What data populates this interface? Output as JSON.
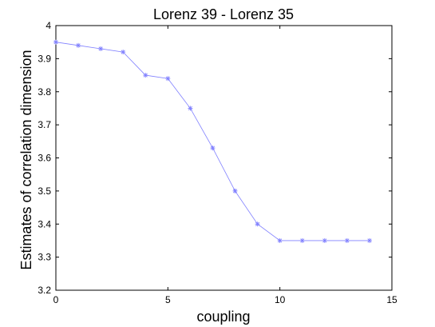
{
  "chart_data": {
    "type": "line",
    "title": "Lorenz 39 - Lorenz 35",
    "xlabel": "coupling",
    "ylabel": "Estimates of correlation dimension",
    "xlim": [
      0,
      15
    ],
    "ylim": [
      3.2,
      4
    ],
    "xticks": [
      "0",
      "5",
      "10",
      "15"
    ],
    "yticks": [
      "3.2",
      "3.3",
      "3.4",
      "3.5",
      "3.6",
      "3.7",
      "3.8",
      "3.9",
      "4"
    ],
    "grid": false,
    "marker": "asterisk",
    "series": [
      {
        "color": "#8080ff",
        "x": [
          0,
          1,
          2,
          3,
          4,
          5,
          6,
          7,
          8,
          9,
          10,
          11,
          12,
          13,
          14
        ],
        "y": [
          3.95,
          3.94,
          3.93,
          3.92,
          3.85,
          3.84,
          3.75,
          3.63,
          3.5,
          3.4,
          3.35,
          3.35,
          3.35,
          3.35,
          3.35
        ]
      }
    ]
  }
}
